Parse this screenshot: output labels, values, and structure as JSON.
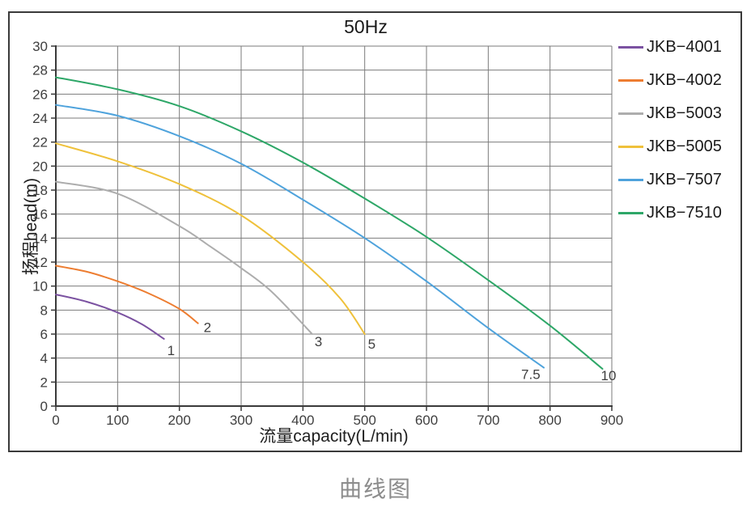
{
  "page": {
    "caption": "曲线图"
  },
  "chart_data": {
    "type": "line",
    "title": "50Hz",
    "xlabel": "流量capacity(L/min)",
    "ylabel": "扬程head(m)",
    "xlim": [
      0,
      900
    ],
    "ylim": [
      0,
      30
    ],
    "xticks": [
      0,
      100,
      200,
      300,
      400,
      500,
      600,
      700,
      800,
      900
    ],
    "yticks": [
      0,
      2,
      4,
      6,
      8,
      10,
      12,
      14,
      16,
      18,
      20,
      22,
      24,
      26,
      28,
      30
    ],
    "grid": true,
    "legend_position": "right",
    "colors": {
      "grid": "#7b7b7b",
      "axis": "#3a3a3a",
      "tick_text": "#3f3f3f",
      "frame": "#3a3a3a",
      "caption_text": "#8c8c8c"
    },
    "series": [
      {
        "name": "JKB−4001",
        "color": "#7B52A1",
        "power_label": "1",
        "label_offset": [
          4,
          20
        ],
        "points": [
          [
            0,
            9.3
          ],
          [
            50,
            8.7
          ],
          [
            100,
            7.8
          ],
          [
            140,
            6.8
          ],
          [
            175,
            5.6
          ]
        ]
      },
      {
        "name": "JKB−4002",
        "color": "#ED7D31",
        "power_label": "2",
        "label_offset": [
          7,
          11
        ],
        "points": [
          [
            0,
            11.7
          ],
          [
            50,
            11.2
          ],
          [
            100,
            10.4
          ],
          [
            150,
            9.4
          ],
          [
            200,
            8.1
          ],
          [
            230,
            6.9
          ]
        ]
      },
      {
        "name": "JKB−5003",
        "color": "#ADADAD",
        "power_label": "3",
        "label_offset": [
          3,
          15
        ],
        "points": [
          [
            0,
            18.7
          ],
          [
            100,
            17.7
          ],
          [
            200,
            15.0
          ],
          [
            250,
            13.3
          ],
          [
            300,
            11.5
          ],
          [
            350,
            9.5
          ],
          [
            415,
            6.0
          ]
        ]
      },
      {
        "name": "JKB−5005",
        "color": "#EFC13B",
        "power_label": "5",
        "label_offset": [
          4,
          18
        ],
        "points": [
          [
            0,
            21.9
          ],
          [
            100,
            20.4
          ],
          [
            200,
            18.5
          ],
          [
            300,
            15.9
          ],
          [
            400,
            12.0
          ],
          [
            460,
            9.0
          ],
          [
            500,
            6.0
          ]
        ]
      },
      {
        "name": "JKB−7507",
        "color": "#4FA3DC",
        "power_label": "7.5",
        "label_offset": [
          -28,
          14
        ],
        "points": [
          [
            0,
            25.1
          ],
          [
            100,
            24.2
          ],
          [
            200,
            22.5
          ],
          [
            300,
            20.2
          ],
          [
            400,
            17.2
          ],
          [
            500,
            14.0
          ],
          [
            600,
            10.4
          ],
          [
            700,
            6.5
          ],
          [
            790,
            3.2
          ]
        ]
      },
      {
        "name": "JKB−7510",
        "color": "#2EA768",
        "power_label": "10",
        "label_offset": [
          -2,
          14
        ],
        "points": [
          [
            0,
            27.4
          ],
          [
            100,
            26.4
          ],
          [
            200,
            25.0
          ],
          [
            300,
            22.9
          ],
          [
            400,
            20.3
          ],
          [
            500,
            17.3
          ],
          [
            600,
            14.1
          ],
          [
            700,
            10.5
          ],
          [
            800,
            6.7
          ],
          [
            885,
            3.1
          ]
        ]
      }
    ]
  }
}
